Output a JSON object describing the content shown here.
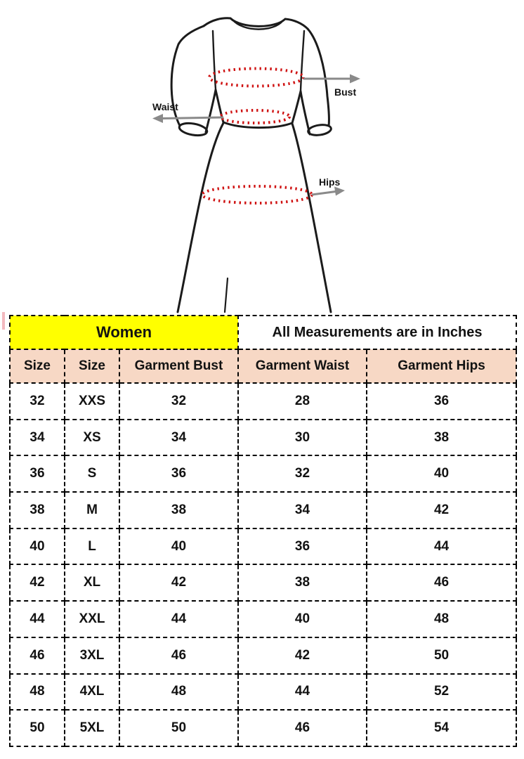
{
  "figure": {
    "labels": {
      "bust": "Bust",
      "waist": "Waist",
      "hips": "Hips"
    },
    "colors": {
      "outline": "#1b1b1b",
      "measure_dots": "#cf1212",
      "arrow": "#8a8a8a"
    }
  },
  "table": {
    "colors": {
      "women_bg": "#ffff00",
      "header_bg": "#f7d8c5",
      "border": "#000000"
    }
  },
  "chart_data": {
    "type": "table",
    "group_headers": [
      "Women",
      "All Measurements are in Inches"
    ],
    "columns": [
      "Size",
      "Size",
      "Garment Bust",
      "Garment Waist",
      "Garment Hips"
    ],
    "rows": [
      [
        "32",
        "XXS",
        "32",
        "28",
        "36"
      ],
      [
        "34",
        "XS",
        "34",
        "30",
        "38"
      ],
      [
        "36",
        "S",
        "36",
        "32",
        "40"
      ],
      [
        "38",
        "M",
        "38",
        "34",
        "42"
      ],
      [
        "40",
        "L",
        "40",
        "36",
        "44"
      ],
      [
        "42",
        "XL",
        "42",
        "38",
        "46"
      ],
      [
        "44",
        "XXL",
        "44",
        "40",
        "48"
      ],
      [
        "46",
        "3XL",
        "46",
        "42",
        "50"
      ],
      [
        "48",
        "4XL",
        "48",
        "44",
        "52"
      ],
      [
        "50",
        "5XL",
        "50",
        "46",
        "54"
      ]
    ]
  }
}
